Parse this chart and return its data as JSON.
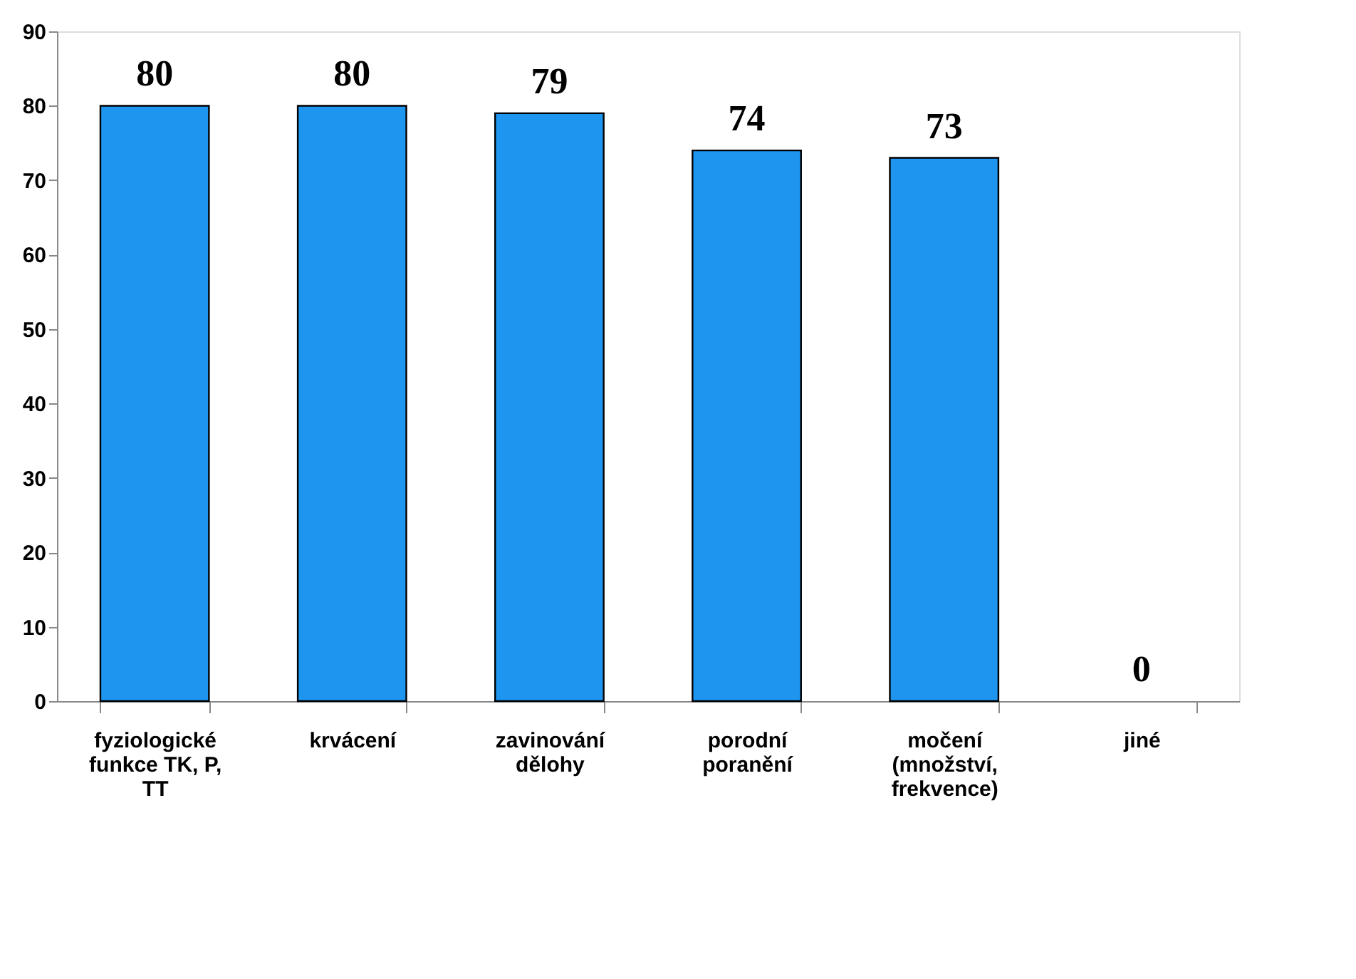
{
  "chart_data": {
    "type": "bar",
    "categories": [
      "fyziologické funkce TK, P, TT",
      "krvácení",
      "zavinování dělohy",
      "porodní poranění",
      "močení (množství, frekvence)",
      "jiné"
    ],
    "values": [
      80,
      80,
      79,
      74,
      73,
      0
    ],
    "color": "#1e96f0",
    "ylim": [
      0,
      90
    ],
    "yticks": [
      0,
      10,
      20,
      30,
      40,
      50,
      60,
      70,
      80,
      90
    ],
    "grid": false,
    "data_labels": true
  }
}
